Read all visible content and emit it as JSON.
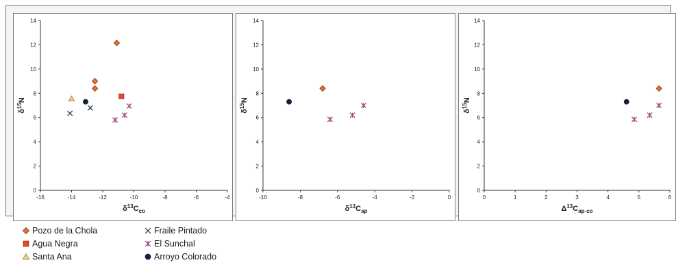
{
  "chart_data": [
    {
      "type": "scatter",
      "xlabel": {
        "symbol": "δ",
        "sup": "13",
        "base": "C",
        "sub": "co"
      },
      "ylabel": {
        "symbol": "δ",
        "sup": "15",
        "base": "N"
      },
      "xlim": [
        -16,
        -4
      ],
      "ylim": [
        0,
        14
      ],
      "xticks": [
        -16,
        -14,
        -12,
        -10,
        -8,
        -6,
        -4
      ],
      "yticks": [
        0,
        2,
        4,
        6,
        8,
        10,
        12,
        14
      ],
      "grid": false,
      "series": [
        {
          "name": "Pozo de la Chola",
          "marker": "diamond",
          "points": [
            [
              -11.1,
              12.15
            ],
            [
              -12.5,
              9.0
            ],
            [
              -12.5,
              8.4
            ]
          ]
        },
        {
          "name": "Agua Negra",
          "marker": "square",
          "points": [
            [
              -10.8,
              7.75
            ]
          ]
        },
        {
          "name": "Santa Ana",
          "marker": "triangle",
          "points": [
            [
              -14.0,
              7.55
            ]
          ]
        },
        {
          "name": "Fraile Pintado",
          "marker": "x",
          "points": [
            [
              -14.1,
              6.35
            ],
            [
              -12.8,
              6.8
            ]
          ]
        },
        {
          "name": "El Sunchal",
          "marker": "asterisk",
          "points": [
            [
              -11.2,
              5.8
            ],
            [
              -10.6,
              6.2
            ],
            [
              -10.3,
              6.95
            ]
          ]
        },
        {
          "name": "Arroyo Colorado",
          "marker": "circle",
          "points": [
            [
              -13.1,
              7.3
            ]
          ]
        }
      ]
    },
    {
      "type": "scatter",
      "xlabel": {
        "symbol": "δ",
        "sup": "13",
        "base": "C",
        "sub": "ap"
      },
      "ylabel": {
        "symbol": "δ",
        "sup": "15",
        "base": "N"
      },
      "xlim": [
        -10,
        0
      ],
      "ylim": [
        0,
        14
      ],
      "xticks": [
        -10,
        -8,
        -6,
        -4,
        -2,
        0
      ],
      "yticks": [
        0,
        2,
        4,
        6,
        8,
        10,
        12,
        14
      ],
      "grid": false,
      "series": [
        {
          "name": "Pozo de la Chola",
          "marker": "diamond",
          "points": [
            [
              -6.8,
              8.4
            ]
          ]
        },
        {
          "name": "El Sunchal",
          "marker": "asterisk",
          "points": [
            [
              -6.4,
              5.85
            ],
            [
              -5.2,
              6.2
            ],
            [
              -4.6,
              7.0
            ]
          ]
        },
        {
          "name": "Arroyo Colorado",
          "marker": "circle",
          "points": [
            [
              -8.6,
              7.3
            ]
          ]
        }
      ]
    },
    {
      "type": "scatter",
      "xlabel": {
        "symbol": "Δ",
        "sup": "13",
        "base": "C",
        "sub": "ap-co"
      },
      "ylabel": {
        "symbol": "δ",
        "sup": "15",
        "base": "N"
      },
      "xlim": [
        0,
        6
      ],
      "ylim": [
        0,
        14
      ],
      "xticks": [
        0,
        1,
        2,
        3,
        4,
        5,
        6
      ],
      "yticks": [
        0,
        2,
        4,
        6,
        8,
        10,
        12,
        14
      ],
      "grid": false,
      "series": [
        {
          "name": "Pozo de la Chola",
          "marker": "diamond",
          "points": [
            [
              5.65,
              8.4
            ]
          ]
        },
        {
          "name": "El Sunchal",
          "marker": "asterisk",
          "points": [
            [
              4.85,
              5.85
            ],
            [
              5.35,
              6.2
            ],
            [
              5.65,
              7.0
            ]
          ]
        },
        {
          "name": "Arroyo Colorado",
          "marker": "circle",
          "points": [
            [
              4.6,
              7.3
            ]
          ]
        }
      ]
    }
  ],
  "legend": [
    {
      "label": "Pozo de la Chola",
      "marker": "diamond"
    },
    {
      "label": "Agua Negra",
      "marker": "square"
    },
    {
      "label": "Santa Ana",
      "marker": "triangle"
    },
    {
      "label": "Fraile Pintado",
      "marker": "x"
    },
    {
      "label": "El Sunchal",
      "marker": "asterisk"
    },
    {
      "label": "Arroyo Colorado",
      "marker": "circle"
    }
  ],
  "colors": {
    "diamond_fill": "#e0703a",
    "diamond_stroke": "#8a3a16",
    "square_fill": "#e34a2c",
    "square_stroke": "#9a2a14",
    "triangle_fill": "#f0d27a",
    "triangle_stroke": "#8a7a3a",
    "x_stroke": "#2e3a4c",
    "asterisk_stroke": "#a0447a",
    "circle_fill": "#14213d",
    "axis": "#333333"
  }
}
